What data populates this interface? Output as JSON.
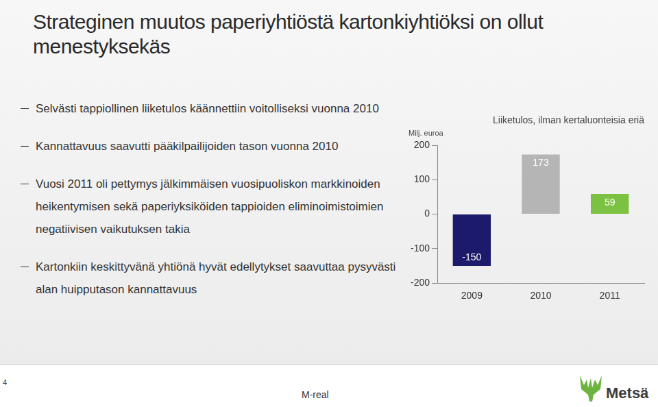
{
  "slide": {
    "title": "Strateginen muutos paperiyhtiöstä kartonkiyhtiöksi on ollut menestyksekäs",
    "bullets": [
      "Selvästi tappiollinen liiketulos käännettiin voitolliseksi vuonna 2010",
      "Kannattavuus saavutti pääkilpailijoiden tason vuonna 2010",
      "Vuosi 2011 oli pettymys jälkimmäisen vuosipuoliskon markkinoiden heikentymisen sekä paperiyksiköiden tappioiden eliminoimistoimien negatiivisen vaikutuksen takia",
      "Kartonkiin keskittyvänä yhtiönä hyvät edellytykset saavuttaa pysyvästi alan huipputason kannattavuus"
    ],
    "page": "4",
    "footer": "M-real",
    "logo": "Metsä"
  },
  "chart_data": {
    "type": "bar",
    "title": "Liiketulos, ilman kertaluonteisia eriä",
    "subtitle": "Milj. euroa",
    "categories": [
      "2009",
      "2010",
      "2011"
    ],
    "values": [
      -150,
      173,
      59
    ],
    "colors": [
      "#1b1a6b",
      "#b5b5b5",
      "#7cc242"
    ],
    "ylim": [
      -200,
      200
    ],
    "yticks": [
      -200,
      -100,
      0,
      100,
      200
    ],
    "grid": false,
    "data_labels": true
  }
}
